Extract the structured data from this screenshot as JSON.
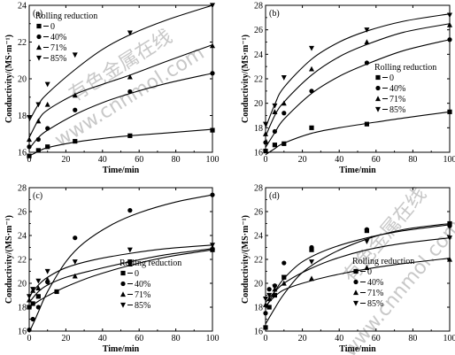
{
  "watermark": {
    "chars": "有色金属在线",
    "url": "www.cnnmol.com"
  },
  "chart_data": [
    {
      "type": "scatter",
      "panel_label": "(a)",
      "xlabel": "Time/min",
      "ylabel": "Conductivity/(MS·m⁻¹)",
      "xlim": [
        0,
        100
      ],
      "ylim": [
        16,
        24
      ],
      "xticks": [
        0,
        20,
        40,
        60,
        80,
        100
      ],
      "yticks": [
        16,
        18,
        20,
        22,
        24
      ],
      "legend_title": "Rolling reduction",
      "legend_placement": "top-left",
      "series": [
        {
          "name": "0",
          "marker": "square",
          "x": [
            0,
            5,
            10,
            25,
            55,
            100
          ],
          "y": [
            15.8,
            16.1,
            16.3,
            16.6,
            16.9,
            17.2
          ],
          "fit": [
            [
              0,
              15.8
            ],
            [
              5,
              16.05
            ],
            [
              10,
              16.25
            ],
            [
              25,
              16.55
            ],
            [
              40,
              16.75
            ],
            [
              55,
              16.9
            ],
            [
              75,
              17.05
            ],
            [
              100,
              17.25
            ]
          ]
        },
        {
          "name": "40%",
          "marker": "circle",
          "x": [
            0,
            5,
            10,
            25,
            55,
            100
          ],
          "y": [
            16.3,
            16.7,
            17.3,
            18.3,
            19.3,
            20.3
          ],
          "fit": [
            [
              0,
              16.2
            ],
            [
              5,
              16.8
            ],
            [
              10,
              17.2
            ],
            [
              25,
              18.05
            ],
            [
              40,
              18.7
            ],
            [
              55,
              19.2
            ],
            [
              75,
              19.75
            ],
            [
              100,
              20.3
            ]
          ]
        },
        {
          "name": "71%",
          "marker": "triangle-up",
          "x": [
            0,
            5,
            10,
            25,
            55,
            100
          ],
          "y": [
            16.7,
            17.7,
            18.6,
            19.1,
            20.1,
            21.8
          ],
          "fit": [
            [
              0,
              16.8
            ],
            [
              5,
              17.75
            ],
            [
              10,
              18.3
            ],
            [
              25,
              19.15
            ],
            [
              40,
              19.7
            ],
            [
              55,
              20.2
            ],
            [
              75,
              20.95
            ],
            [
              100,
              21.85
            ]
          ]
        },
        {
          "name": "85%",
          "marker": "triangle-down",
          "x": [
            0,
            5,
            10,
            25,
            55,
            100
          ],
          "y": [
            17.9,
            18.6,
            19.7,
            21.3,
            22.5,
            24.0
          ],
          "fit": [
            [
              0,
              17.7
            ],
            [
              5,
              18.6
            ],
            [
              10,
              19.2
            ],
            [
              25,
              20.5
            ],
            [
              40,
              21.6
            ],
            [
              55,
              22.4
            ],
            [
              75,
              23.2
            ],
            [
              100,
              24.0
            ]
          ]
        }
      ]
    },
    {
      "type": "scatter",
      "panel_label": "(b)",
      "xlabel": "Time/min",
      "ylabel": "Conductivity/(MS·m⁻¹)",
      "xlim": [
        0,
        100
      ],
      "ylim": [
        16,
        28
      ],
      "xticks": [
        0,
        20,
        40,
        60,
        80,
        100
      ],
      "yticks": [
        16,
        18,
        20,
        22,
        24,
        26,
        28
      ],
      "legend_title": "Rolling reduction",
      "legend_placement": "center-right",
      "series": [
        {
          "name": "0",
          "marker": "square",
          "x": [
            0,
            5,
            10,
            25,
            55,
            100
          ],
          "y": [
            16.1,
            16.6,
            16.7,
            18.0,
            18.3,
            19.3
          ],
          "fit": [
            [
              0,
              15.8
            ],
            [
              5,
              16.3
            ],
            [
              10,
              16.75
            ],
            [
              25,
              17.55
            ],
            [
              40,
              18.0
            ],
            [
              55,
              18.35
            ],
            [
              75,
              18.8
            ],
            [
              100,
              19.3
            ]
          ]
        },
        {
          "name": "40%",
          "marker": "circle",
          "x": [
            0,
            5,
            10,
            25,
            55,
            100
          ],
          "y": [
            16.8,
            17.7,
            19.2,
            21.0,
            23.3,
            25.2
          ],
          "fit": [
            [
              0,
              16.4
            ],
            [
              5,
              17.6
            ],
            [
              10,
              18.7
            ],
            [
              25,
              20.8
            ],
            [
              40,
              22.2
            ],
            [
              55,
              23.2
            ],
            [
              75,
              24.3
            ],
            [
              100,
              25.2
            ]
          ]
        },
        {
          "name": "71%",
          "marker": "triangle-up",
          "x": [
            0,
            5,
            10,
            25,
            55,
            100
          ],
          "y": [
            17.5,
            19.3,
            20.0,
            22.8,
            25.0,
            26.4
          ],
          "fit": [
            [
              0,
              17.3
            ],
            [
              5,
              19.0
            ],
            [
              10,
              20.1
            ],
            [
              25,
              22.3
            ],
            [
              40,
              23.8
            ],
            [
              55,
              24.8
            ],
            [
              75,
              25.8
            ],
            [
              100,
              26.5
            ]
          ]
        },
        {
          "name": "85%",
          "marker": "triangle-down",
          "x": [
            0,
            5,
            10,
            25,
            55,
            100
          ],
          "y": [
            18.3,
            19.8,
            22.1,
            24.5,
            26.0,
            27.2
          ],
          "fit": [
            [
              0,
              18.0
            ],
            [
              5,
              19.9
            ],
            [
              10,
              21.3
            ],
            [
              25,
              23.6
            ],
            [
              40,
              25.0
            ],
            [
              55,
              25.9
            ],
            [
              75,
              26.7
            ],
            [
              100,
              27.3
            ]
          ]
        }
      ]
    },
    {
      "type": "scatter",
      "panel_label": "(c)",
      "xlabel": "Time/min",
      "ylabel": "Conductivity/(MS·m⁻¹)",
      "xlim": [
        0,
        100
      ],
      "ylim": [
        16,
        28
      ],
      "xticks": [
        0,
        20,
        40,
        60,
        80,
        100
      ],
      "yticks": [
        16,
        18,
        20,
        22,
        24,
        26,
        28
      ],
      "legend_title": "Rolling reduction",
      "legend_placement": "bottom-right",
      "series": [
        {
          "name": "0",
          "marker": "square",
          "x": [
            0,
            2,
            5,
            15,
            55,
            100
          ],
          "y": [
            18.0,
            18.3,
            18.9,
            19.3,
            21.8,
            22.8
          ],
          "fit": [
            [
              0,
              18.0
            ],
            [
              5,
              18.5
            ],
            [
              10,
              18.95
            ],
            [
              20,
              19.7
            ],
            [
              35,
              20.6
            ],
            [
              55,
              21.5
            ],
            [
              75,
              22.2
            ],
            [
              100,
              22.8
            ]
          ]
        },
        {
          "name": "40%",
          "marker": "circle",
          "x": [
            0,
            2,
            5,
            10,
            25,
            55,
            100
          ],
          "y": [
            16.1,
            17.0,
            18.0,
            20.1,
            23.8,
            26.1,
            27.4
          ],
          "fit": [
            [
              0,
              15.9
            ],
            [
              3,
              16.9
            ],
            [
              5,
              17.6
            ],
            [
              10,
              19.3
            ],
            [
              20,
              21.8
            ],
            [
              30,
              23.4
            ],
            [
              45,
              24.9
            ],
            [
              60,
              25.9
            ],
            [
              80,
              26.8
            ],
            [
              100,
              27.4
            ]
          ]
        },
        {
          "name": "71%",
          "marker": "triangle-up",
          "x": [
            0,
            2,
            5,
            10,
            25,
            55,
            100
          ],
          "y": [
            18.6,
            19.4,
            19.6,
            20.3,
            20.6,
            21.6,
            23.0
          ],
          "fit": [
            [
              0,
              18.4
            ],
            [
              5,
              19.3
            ],
            [
              10,
              19.85
            ],
            [
              20,
              20.5
            ],
            [
              35,
              21.1
            ],
            [
              55,
              21.8
            ],
            [
              75,
              22.4
            ],
            [
              100,
              22.9
            ]
          ]
        },
        {
          "name": "85%",
          "marker": "triangle-down",
          "x": [
            0,
            2,
            5,
            10,
            25,
            55,
            100
          ],
          "y": [
            18.9,
            19.5,
            20.2,
            21.0,
            21.8,
            22.8,
            23.2
          ],
          "fit": [
            [
              0,
              18.9
            ],
            [
              5,
              19.85
            ],
            [
              10,
              20.5
            ],
            [
              20,
              21.3
            ],
            [
              35,
              21.95
            ],
            [
              55,
              22.5
            ],
            [
              75,
              22.9
            ],
            [
              100,
              23.2
            ]
          ]
        }
      ]
    },
    {
      "type": "scatter",
      "panel_label": "(d)",
      "xlabel": "Time/min",
      "ylabel": "Conductivity/(MS·m⁻¹)",
      "xlim": [
        0,
        100
      ],
      "ylim": [
        16,
        28
      ],
      "xticks": [
        0,
        20,
        40,
        60,
        80,
        100
      ],
      "yticks": [
        16,
        18,
        20,
        22,
        24,
        26,
        28
      ],
      "legend_title": "Rolling reduction",
      "legend_placement": "bottom-right",
      "series": [
        {
          "name": "0",
          "marker": "square",
          "x": [
            0,
            2,
            5,
            10,
            25,
            55,
            100
          ],
          "y": [
            16.3,
            18.0,
            19.0,
            20.5,
            22.8,
            24.4,
            25.0
          ],
          "fit": [
            [
              0,
              16.6
            ],
            [
              5,
              17.9
            ],
            [
              10,
              19.1
            ],
            [
              20,
              20.9
            ],
            [
              35,
              22.4
            ],
            [
              55,
              23.7
            ],
            [
              75,
              24.5
            ],
            [
              100,
              25.0
            ]
          ]
        },
        {
          "name": "40%",
          "marker": "circle",
          "x": [
            0,
            2,
            5,
            10,
            25,
            55,
            100
          ],
          "y": [
            17.5,
            19.5,
            19.8,
            21.7,
            23.0,
            24.5,
            24.8
          ],
          "fit": [
            [
              0,
              17.9
            ],
            [
              5,
              19.3
            ],
            [
              10,
              20.4
            ],
            [
              20,
              21.8
            ],
            [
              35,
              22.9
            ],
            [
              55,
              23.8
            ],
            [
              75,
              24.4
            ],
            [
              100,
              24.9
            ]
          ]
        },
        {
          "name": "71%",
          "marker": "triangle-up",
          "x": [
            0,
            2,
            5,
            10,
            25,
            55,
            100
          ],
          "y": [
            18.2,
            18.7,
            19.5,
            20.0,
            20.4,
            21.3,
            22.0
          ],
          "fit": [
            [
              0,
              18.1
            ],
            [
              5,
              18.9
            ],
            [
              10,
              19.45
            ],
            [
              20,
              20.0
            ],
            [
              35,
              20.6
            ],
            [
              55,
              21.2
            ],
            [
              75,
              21.65
            ],
            [
              100,
              22.1
            ]
          ]
        },
        {
          "name": "85%",
          "marker": "triangle-down",
          "x": [
            0,
            2,
            5,
            10,
            25,
            55,
            100
          ],
          "y": [
            18.7,
            19.0,
            19.7,
            20.5,
            21.8,
            23.5,
            23.8
          ],
          "fit": [
            [
              0,
              18.4
            ],
            [
              5,
              19.3
            ],
            [
              10,
              20.0
            ],
            [
              20,
              20.9
            ],
            [
              35,
              21.9
            ],
            [
              55,
              22.8
            ],
            [
              75,
              23.35
            ],
            [
              100,
              23.8
            ]
          ]
        }
      ]
    }
  ]
}
